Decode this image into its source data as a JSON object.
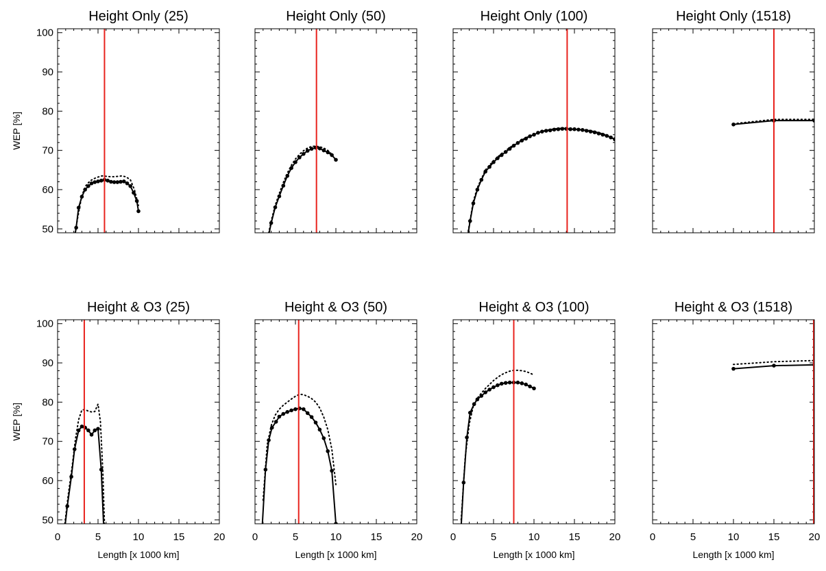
{
  "figure": {
    "shared_xlabel": "Length [x 1000 km]",
    "shared_ylabel": "WEP [%]",
    "x_ticks": [
      0,
      5,
      10,
      15,
      20
    ],
    "y_ticks": [
      50,
      60,
      70,
      80,
      90,
      100
    ],
    "line_color": "#000000",
    "marker_line_color": "#e8211c"
  },
  "chart_data": [
    {
      "type": "line",
      "title": "Height Only (25)",
      "xlim": [
        0,
        20
      ],
      "ylim": [
        49,
        101
      ],
      "vertical_line_x": 5.8,
      "series": [
        {
          "style": "solid-markers",
          "x": [
            2.0,
            2.3,
            2.6,
            3.0,
            3.4,
            3.8,
            4.2,
            4.6,
            5.0,
            5.4,
            5.8,
            6.2,
            6.6,
            7.0,
            7.4,
            7.8,
            8.2,
            8.6,
            9.0,
            9.4,
            9.8,
            10.0
          ],
          "y": [
            46.5,
            50.3,
            55.4,
            58.2,
            60.0,
            60.9,
            61.6,
            61.9,
            62.1,
            62.3,
            62.5,
            62.3,
            62.0,
            61.9,
            61.9,
            62.0,
            62.1,
            61.6,
            60.9,
            59.2,
            57.1,
            54.5
          ]
        },
        {
          "style": "dotted",
          "x": [
            2.0,
            2.5,
            3.0,
            3.5,
            4.0,
            4.5,
            5.0,
            5.5,
            6.0,
            6.5,
            7.0,
            7.5,
            8.0,
            8.5,
            9.0,
            9.5,
            10.0
          ],
          "y": [
            47.0,
            53.0,
            58.5,
            61.0,
            62.2,
            62.8,
            63.2,
            63.5,
            63.4,
            63.3,
            63.3,
            63.4,
            63.5,
            63.2,
            62.5,
            60.0,
            56.0
          ]
        }
      ]
    },
    {
      "type": "line",
      "title": "Height Only (50)",
      "xlim": [
        0,
        20
      ],
      "ylim": [
        49,
        101
      ],
      "vertical_line_x": 7.6,
      "series": [
        {
          "style": "solid-markers",
          "x": [
            1.6,
            2.0,
            2.5,
            3.0,
            3.5,
            4.0,
            4.5,
            5.0,
            5.5,
            6.0,
            6.5,
            7.0,
            7.5,
            8.0,
            8.5,
            9.0,
            9.5,
            10.0
          ],
          "y": [
            47.5,
            51.5,
            55.5,
            58.3,
            61.0,
            63.5,
            65.5,
            67.0,
            68.2,
            69.1,
            69.9,
            70.4,
            70.7,
            70.5,
            70.0,
            69.5,
            68.8,
            67.6
          ]
        },
        {
          "style": "dotted",
          "x": [
            1.6,
            2.0,
            2.5,
            3.0,
            3.5,
            4.0,
            4.5,
            5.0,
            5.5,
            6.0,
            6.5,
            7.0,
            7.5,
            8.0,
            8.5,
            9.0,
            9.5
          ],
          "y": [
            48.0,
            52.0,
            56.0,
            59.0,
            61.8,
            64.2,
            66.2,
            67.8,
            69.0,
            69.9,
            70.6,
            71.0,
            71.1,
            70.9,
            70.6,
            70.0,
            69.0
          ]
        }
      ]
    },
    {
      "type": "line",
      "title": "Height Only (100)",
      "xlim": [
        0,
        20
      ],
      "ylim": [
        49,
        101
      ],
      "vertical_line_x": 14.1,
      "series": [
        {
          "style": "solid-markers",
          "x": [
            1.8,
            2.1,
            2.5,
            3.0,
            3.5,
            4.0,
            4.5,
            5.0,
            5.5,
            6.0,
            6.5,
            7.0,
            7.5,
            8.0,
            8.5,
            9.0,
            9.5,
            10.0,
            10.5,
            11.0,
            11.5,
            12.0,
            12.5,
            13.0,
            13.5,
            14.0,
            14.5,
            15.0,
            15.5,
            16.0,
            16.5,
            17.0,
            17.5,
            18.0,
            18.5,
            19.0,
            19.5,
            20.0
          ],
          "y": [
            48.0,
            52.0,
            56.5,
            60.0,
            62.5,
            64.6,
            65.8,
            67.0,
            68.0,
            68.8,
            69.6,
            70.4,
            71.2,
            71.9,
            72.5,
            73.0,
            73.6,
            74.0,
            74.5,
            74.8,
            75.0,
            75.1,
            75.3,
            75.4,
            75.5,
            75.5,
            75.4,
            75.4,
            75.3,
            75.2,
            75.0,
            74.8,
            74.6,
            74.3,
            74.0,
            73.7,
            73.3,
            72.8
          ]
        },
        {
          "style": "dotted",
          "x": [
            1.8,
            2.5,
            3.0,
            4.0,
            5.0,
            6.0,
            7.0,
            8.0,
            9.0,
            10.0,
            11.0,
            12.0,
            13.0,
            14.0,
            15.0,
            16.0,
            17.0,
            18.0,
            19.0,
            20.0
          ],
          "y": [
            48.5,
            57.0,
            60.5,
            65.0,
            67.4,
            69.2,
            70.7,
            72.1,
            73.2,
            74.2,
            74.9,
            75.3,
            75.6,
            75.7,
            75.6,
            75.4,
            75.0,
            74.5,
            73.9,
            73.1
          ]
        }
      ]
    },
    {
      "type": "line",
      "title": "Height Only (1518)",
      "xlim": [
        0,
        20
      ],
      "ylim": [
        49,
        101
      ],
      "vertical_line_x": 15.0,
      "series": [
        {
          "style": "solid-markers",
          "x": [
            10,
            15,
            20
          ],
          "y": [
            76.6,
            77.6,
            77.6
          ]
        },
        {
          "style": "dotted",
          "x": [
            10,
            15,
            20
          ],
          "y": [
            76.8,
            77.9,
            77.9
          ]
        }
      ]
    },
    {
      "type": "line",
      "title": "Height & O3 (25)",
      "xlim": [
        0,
        20
      ],
      "ylim": [
        49,
        101
      ],
      "vertical_line_x": 3.3,
      "series": [
        {
          "style": "solid-markers",
          "x": [
            0.9,
            1.2,
            1.7,
            2.1,
            2.6,
            3.0,
            3.4,
            3.8,
            4.2,
            4.6,
            5.0,
            5.4,
            5.7
          ],
          "y": [
            48.0,
            53.5,
            61.0,
            68.0,
            72.8,
            73.8,
            73.5,
            72.8,
            71.7,
            72.8,
            73.2,
            62.8,
            48.0
          ]
        },
        {
          "style": "dotted",
          "x": [
            0.9,
            1.3,
            1.8,
            2.2,
            2.6,
            3.0,
            3.4,
            3.8,
            4.2,
            4.6,
            5.0,
            5.3,
            5.6,
            5.8
          ],
          "y": [
            49.0,
            56.0,
            63.5,
            70.5,
            75.5,
            78.0,
            78.1,
            77.7,
            77.5,
            77.6,
            79.5,
            75.0,
            62.0,
            49.0
          ]
        }
      ]
    },
    {
      "type": "line",
      "title": "Height & O3 (50)",
      "xlim": [
        0,
        20
      ],
      "ylim": [
        49,
        101
      ],
      "vertical_line_x": 5.4,
      "series": [
        {
          "style": "solid-markers",
          "x": [
            0.9,
            1.3,
            1.7,
            2.1,
            2.6,
            3.0,
            3.5,
            4.0,
            4.5,
            5.0,
            5.5,
            6.0,
            6.5,
            7.0,
            7.5,
            8.0,
            8.5,
            9.0,
            9.5,
            10.0
          ],
          "y": [
            48.5,
            62.8,
            70.3,
            73.5,
            75.0,
            76.3,
            77.0,
            77.5,
            77.9,
            78.2,
            78.4,
            78.2,
            77.2,
            76.2,
            74.8,
            73.0,
            70.8,
            67.5,
            62.5,
            49.0
          ]
        },
        {
          "style": "dotted",
          "x": [
            1.0,
            1.5,
            2.0,
            2.5,
            3.0,
            3.5,
            4.0,
            4.5,
            5.0,
            5.5,
            6.0,
            6.5,
            7.0,
            7.5,
            8.0,
            8.5,
            9.0,
            9.5,
            10.0
          ],
          "y": [
            55.0,
            69.0,
            74.0,
            76.7,
            78.2,
            79.2,
            80.0,
            80.8,
            81.5,
            82.0,
            81.9,
            81.5,
            80.9,
            80.0,
            78.5,
            76.2,
            73.0,
            68.0,
            59.0
          ]
        }
      ]
    },
    {
      "type": "line",
      "title": "Height & O3 (100)",
      "xlim": [
        0,
        20
      ],
      "ylim": [
        49,
        101
      ],
      "vertical_line_x": 7.5,
      "series": [
        {
          "style": "solid-markers",
          "x": [
            1.0,
            1.3,
            1.7,
            2.1,
            2.6,
            3.0,
            3.5,
            4.0,
            4.5,
            5.0,
            5.5,
            6.0,
            6.5,
            7.0,
            7.5,
            8.0,
            8.5,
            9.0,
            9.5,
            10.0
          ],
          "y": [
            48.5,
            59.5,
            71.0,
            77.3,
            79.5,
            80.7,
            81.6,
            82.5,
            83.2,
            83.8,
            84.3,
            84.7,
            84.9,
            85.0,
            85.0,
            85.0,
            84.8,
            84.5,
            84.0,
            83.5
          ]
        },
        {
          "style": "dotted",
          "x": [
            1.0,
            1.5,
            2.0,
            2.5,
            3.0,
            3.5,
            4.0,
            4.5,
            5.0,
            5.5,
            6.0,
            6.5,
            7.0,
            7.5,
            8.0,
            8.5,
            9.0,
            9.5,
            10.0
          ],
          "y": [
            50.0,
            66.0,
            74.5,
            79.0,
            81.0,
            82.3,
            83.5,
            84.5,
            85.5,
            86.3,
            87.0,
            87.5,
            87.9,
            88.1,
            88.1,
            88.0,
            87.8,
            87.4,
            86.9
          ]
        }
      ]
    },
    {
      "type": "line",
      "title": "Height & O3 (1518)",
      "xlim": [
        0,
        20
      ],
      "ylim": [
        49,
        101
      ],
      "vertical_line_x": 20.0,
      "series": [
        {
          "style": "solid-markers",
          "x": [
            10,
            15,
            20
          ],
          "y": [
            88.5,
            89.3,
            89.5
          ]
        },
        {
          "style": "dotted",
          "x": [
            10,
            15,
            20
          ],
          "y": [
            89.6,
            90.3,
            90.6
          ]
        }
      ]
    }
  ]
}
